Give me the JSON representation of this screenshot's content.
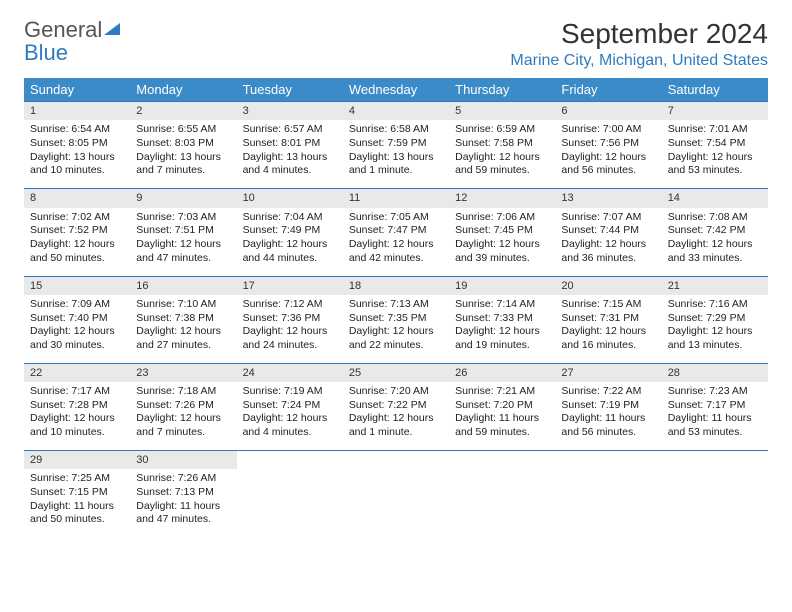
{
  "brand": {
    "name_part1": "General",
    "name_part2": "Blue"
  },
  "header": {
    "month_title": "September 2024",
    "location": "Marine City, Michigan, United States"
  },
  "calendar": {
    "header_bg": "#3b8bc9",
    "header_text_color": "#ffffff",
    "daynum_bg": "#e9e9e9",
    "row_border_color": "#2f7bbf",
    "day_names": [
      "Sunday",
      "Monday",
      "Tuesday",
      "Wednesday",
      "Thursday",
      "Friday",
      "Saturday"
    ],
    "weeks": [
      [
        {
          "day": "1",
          "sunrise": "Sunrise: 6:54 AM",
          "sunset": "Sunset: 8:05 PM",
          "daylight": "Daylight: 13 hours and 10 minutes."
        },
        {
          "day": "2",
          "sunrise": "Sunrise: 6:55 AM",
          "sunset": "Sunset: 8:03 PM",
          "daylight": "Daylight: 13 hours and 7 minutes."
        },
        {
          "day": "3",
          "sunrise": "Sunrise: 6:57 AM",
          "sunset": "Sunset: 8:01 PM",
          "daylight": "Daylight: 13 hours and 4 minutes."
        },
        {
          "day": "4",
          "sunrise": "Sunrise: 6:58 AM",
          "sunset": "Sunset: 7:59 PM",
          "daylight": "Daylight: 13 hours and 1 minute."
        },
        {
          "day": "5",
          "sunrise": "Sunrise: 6:59 AM",
          "sunset": "Sunset: 7:58 PM",
          "daylight": "Daylight: 12 hours and 59 minutes."
        },
        {
          "day": "6",
          "sunrise": "Sunrise: 7:00 AM",
          "sunset": "Sunset: 7:56 PM",
          "daylight": "Daylight: 12 hours and 56 minutes."
        },
        {
          "day": "7",
          "sunrise": "Sunrise: 7:01 AM",
          "sunset": "Sunset: 7:54 PM",
          "daylight": "Daylight: 12 hours and 53 minutes."
        }
      ],
      [
        {
          "day": "8",
          "sunrise": "Sunrise: 7:02 AM",
          "sunset": "Sunset: 7:52 PM",
          "daylight": "Daylight: 12 hours and 50 minutes."
        },
        {
          "day": "9",
          "sunrise": "Sunrise: 7:03 AM",
          "sunset": "Sunset: 7:51 PM",
          "daylight": "Daylight: 12 hours and 47 minutes."
        },
        {
          "day": "10",
          "sunrise": "Sunrise: 7:04 AM",
          "sunset": "Sunset: 7:49 PM",
          "daylight": "Daylight: 12 hours and 44 minutes."
        },
        {
          "day": "11",
          "sunrise": "Sunrise: 7:05 AM",
          "sunset": "Sunset: 7:47 PM",
          "daylight": "Daylight: 12 hours and 42 minutes."
        },
        {
          "day": "12",
          "sunrise": "Sunrise: 7:06 AM",
          "sunset": "Sunset: 7:45 PM",
          "daylight": "Daylight: 12 hours and 39 minutes."
        },
        {
          "day": "13",
          "sunrise": "Sunrise: 7:07 AM",
          "sunset": "Sunset: 7:44 PM",
          "daylight": "Daylight: 12 hours and 36 minutes."
        },
        {
          "day": "14",
          "sunrise": "Sunrise: 7:08 AM",
          "sunset": "Sunset: 7:42 PM",
          "daylight": "Daylight: 12 hours and 33 minutes."
        }
      ],
      [
        {
          "day": "15",
          "sunrise": "Sunrise: 7:09 AM",
          "sunset": "Sunset: 7:40 PM",
          "daylight": "Daylight: 12 hours and 30 minutes."
        },
        {
          "day": "16",
          "sunrise": "Sunrise: 7:10 AM",
          "sunset": "Sunset: 7:38 PM",
          "daylight": "Daylight: 12 hours and 27 minutes."
        },
        {
          "day": "17",
          "sunrise": "Sunrise: 7:12 AM",
          "sunset": "Sunset: 7:36 PM",
          "daylight": "Daylight: 12 hours and 24 minutes."
        },
        {
          "day": "18",
          "sunrise": "Sunrise: 7:13 AM",
          "sunset": "Sunset: 7:35 PM",
          "daylight": "Daylight: 12 hours and 22 minutes."
        },
        {
          "day": "19",
          "sunrise": "Sunrise: 7:14 AM",
          "sunset": "Sunset: 7:33 PM",
          "daylight": "Daylight: 12 hours and 19 minutes."
        },
        {
          "day": "20",
          "sunrise": "Sunrise: 7:15 AM",
          "sunset": "Sunset: 7:31 PM",
          "daylight": "Daylight: 12 hours and 16 minutes."
        },
        {
          "day": "21",
          "sunrise": "Sunrise: 7:16 AM",
          "sunset": "Sunset: 7:29 PM",
          "daylight": "Daylight: 12 hours and 13 minutes."
        }
      ],
      [
        {
          "day": "22",
          "sunrise": "Sunrise: 7:17 AM",
          "sunset": "Sunset: 7:28 PM",
          "daylight": "Daylight: 12 hours and 10 minutes."
        },
        {
          "day": "23",
          "sunrise": "Sunrise: 7:18 AM",
          "sunset": "Sunset: 7:26 PM",
          "daylight": "Daylight: 12 hours and 7 minutes."
        },
        {
          "day": "24",
          "sunrise": "Sunrise: 7:19 AM",
          "sunset": "Sunset: 7:24 PM",
          "daylight": "Daylight: 12 hours and 4 minutes."
        },
        {
          "day": "25",
          "sunrise": "Sunrise: 7:20 AM",
          "sunset": "Sunset: 7:22 PM",
          "daylight": "Daylight: 12 hours and 1 minute."
        },
        {
          "day": "26",
          "sunrise": "Sunrise: 7:21 AM",
          "sunset": "Sunset: 7:20 PM",
          "daylight": "Daylight: 11 hours and 59 minutes."
        },
        {
          "day": "27",
          "sunrise": "Sunrise: 7:22 AM",
          "sunset": "Sunset: 7:19 PM",
          "daylight": "Daylight: 11 hours and 56 minutes."
        },
        {
          "day": "28",
          "sunrise": "Sunrise: 7:23 AM",
          "sunset": "Sunset: 7:17 PM",
          "daylight": "Daylight: 11 hours and 53 minutes."
        }
      ],
      [
        {
          "day": "29",
          "sunrise": "Sunrise: 7:25 AM",
          "sunset": "Sunset: 7:15 PM",
          "daylight": "Daylight: 11 hours and 50 minutes."
        },
        {
          "day": "30",
          "sunrise": "Sunrise: 7:26 AM",
          "sunset": "Sunset: 7:13 PM",
          "daylight": "Daylight: 11 hours and 47 minutes."
        },
        null,
        null,
        null,
        null,
        null
      ]
    ]
  }
}
